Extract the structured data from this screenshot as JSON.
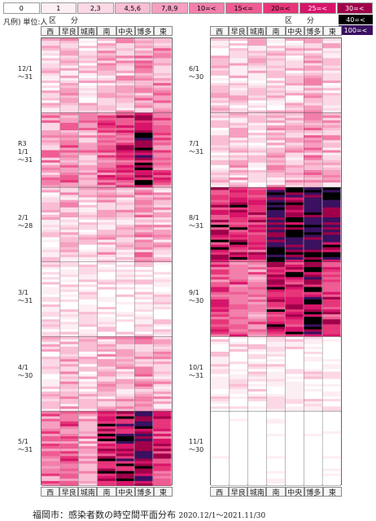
{
  "legend": {
    "label": "凡例) 単位:人",
    "items": [
      {
        "label": "0",
        "color": "#ffffff",
        "text": "#000"
      },
      {
        "label": "1",
        "color": "#fdeef4",
        "text": "#000"
      },
      {
        "label": "2,3",
        "color": "#fcd8e6",
        "text": "#000"
      },
      {
        "label": "4,5,6",
        "color": "#f9bdd4",
        "text": "#000"
      },
      {
        "label": "7,8,9",
        "color": "#f69fc0",
        "text": "#000"
      },
      {
        "label": "10=<",
        "color": "#f27faa",
        "text": "#000"
      },
      {
        "label": "15<=",
        "color": "#ee5c93",
        "text": "#000"
      },
      {
        "label": "20=<",
        "color": "#e7357a",
        "text": "#000"
      },
      {
        "label": "25=<",
        "color": "#d8146a",
        "text": "#fff"
      },
      {
        "label": "30=<",
        "color": "#a0004a",
        "text": "#fff"
      }
    ],
    "extra": [
      {
        "label": "40=<",
        "color": "#000000"
      },
      {
        "label": "100=<",
        "color": "#3a1060"
      }
    ]
  },
  "ward_header": "区　　分",
  "columns": [
    "西",
    "早良",
    "城南",
    "南",
    "中央",
    "博多",
    "東"
  ],
  "left_months": [
    {
      "label": "12/1\n～31"
    },
    {
      "label": "R3\n1/1\n～31"
    },
    {
      "label": "2/1\n～28"
    },
    {
      "label": "3/1\n～31"
    },
    {
      "label": "4/1\n～30"
    },
    {
      "label": "5/1\n～31"
    }
  ],
  "right_months": [
    {
      "label": "6/1\n～30"
    },
    {
      "label": "7/1\n～31"
    },
    {
      "label": "8/1\n～31"
    },
    {
      "label": "9/1\n～30"
    },
    {
      "label": "10/1\n～31"
    },
    {
      "label": "11/1\n～30"
    }
  ],
  "footer": {
    "title": "福岡市：感染者数の時空間平面分布",
    "range": "2020.12/1～2021.11/30"
  },
  "chart_data": {
    "type": "heatmap",
    "title": "福岡市：感染者数の時空間平面分布",
    "x": [
      "西",
      "早良",
      "城南",
      "南",
      "中央",
      "博多",
      "東"
    ],
    "y_period": "2020.12/1～2021.11/30",
    "levels": [
      "0",
      "1",
      "2,3",
      "4,5,6",
      "7,8,9",
      "10=<",
      "15<=",
      "20=<",
      "25=<",
      "30=<",
      "40=<",
      "100=<"
    ],
    "monthly_intensity_note_levels": {
      "12/1～31": [
        2,
        3,
        2,
        3,
        3,
        4,
        4
      ],
      "1/1～31": [
        4,
        5,
        4,
        6,
        7,
        9,
        6
      ],
      "2/1～28": [
        2,
        3,
        2,
        3,
        3,
        4,
        3
      ],
      "3/1～31": [
        1,
        1,
        1,
        1,
        1,
        1,
        1
      ],
      "4/1～30": [
        2,
        3,
        2,
        3,
        3,
        4,
        3
      ],
      "5/1～31": [
        5,
        6,
        4,
        8,
        9,
        10,
        7
      ],
      "6/1～30": [
        2,
        2,
        2,
        2,
        2,
        3,
        2
      ],
      "7/1～31": [
        2,
        3,
        2,
        3,
        3,
        4,
        3
      ],
      "8/1～31": [
        8,
        8,
        7,
        10,
        10,
        11,
        10
      ],
      "9/1～30": [
        6,
        6,
        5,
        8,
        8,
        9,
        7
      ],
      "10/1～31": [
        1,
        1,
        1,
        1,
        1,
        1,
        1
      ],
      "11/1～30": [
        0,
        0,
        0,
        0,
        0,
        0,
        0
      ]
    }
  }
}
